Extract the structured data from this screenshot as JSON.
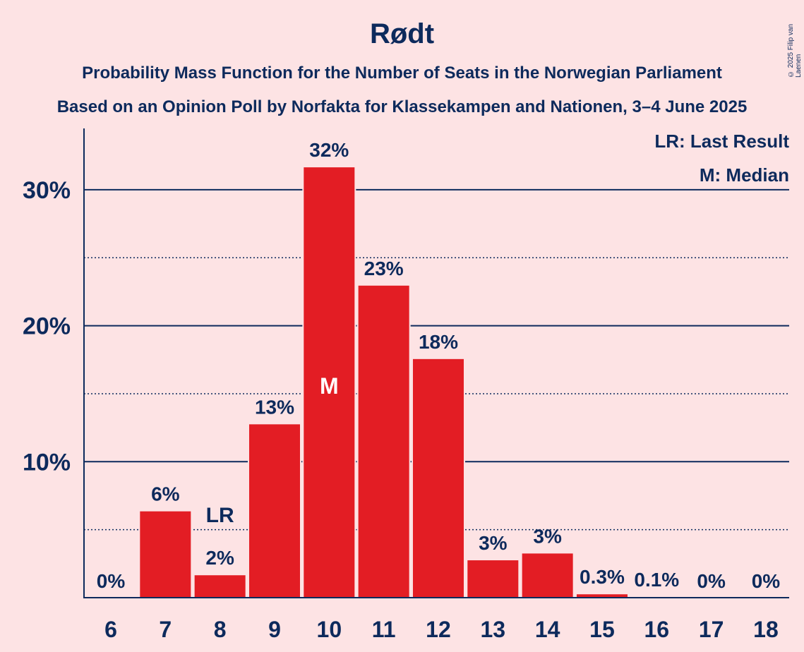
{
  "title": "Rødt",
  "subtitle1": "Probability Mass Function for the Number of Seats in the Norwegian Parliament",
  "subtitle2": "Based on an Opinion Poll by Norfakta for Klassekampen and Nationen, 3–4 June 2025",
  "copyright": "© 2025 Filip van Laenen",
  "legend": {
    "last_result": "LR: Last Result",
    "median": "M: Median"
  },
  "colors": {
    "bar": "#e31d24",
    "text": "#0d2a5c",
    "background": "#fde3e4"
  },
  "chart_data": {
    "type": "bar",
    "categories": [
      "6",
      "7",
      "8",
      "9",
      "10",
      "11",
      "12",
      "13",
      "14",
      "15",
      "16",
      "17",
      "18"
    ],
    "values": [
      0,
      6.4,
      1.7,
      12.8,
      31.7,
      23.0,
      17.6,
      2.8,
      3.3,
      0.3,
      0.1,
      0,
      0
    ],
    "value_labels": [
      "0%",
      "6%",
      "2%",
      "13%",
      "32%",
      "23%",
      "18%",
      "3%",
      "3%",
      "0.3%",
      "0.1%",
      "0%",
      "0%"
    ],
    "y_ticks": [
      10,
      20,
      30
    ],
    "y_tick_labels": [
      "10%",
      "20%",
      "30%"
    ],
    "ylim": [
      0,
      34.5
    ],
    "last_result": {
      "category": "8",
      "label": "LR"
    },
    "median": {
      "category": "10",
      "label": "M"
    }
  }
}
